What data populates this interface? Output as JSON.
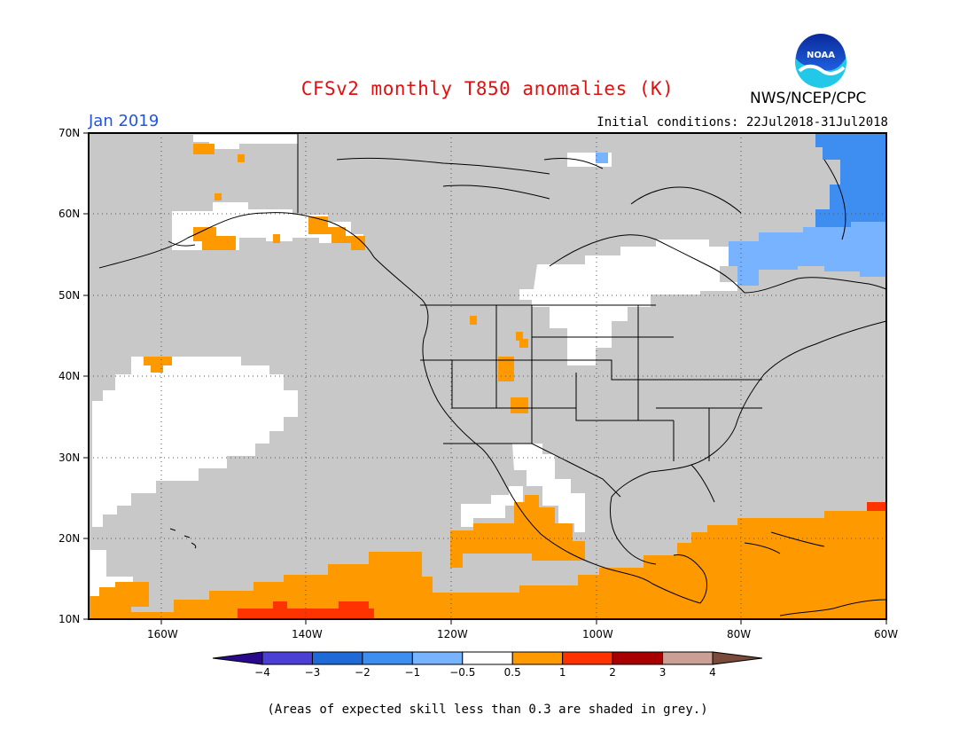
{
  "header": {
    "title": "CFSv2 monthly T850 anomalies (K)",
    "agency": "NWS/NCEP/CPC",
    "month": "Jan 2019",
    "initial_conditions": "Initial conditions: 22Jul2018-31Jul2018",
    "logo_text": "NOAA"
  },
  "map": {
    "projection": "lat-lon",
    "lon_range": [
      -170,
      -60
    ],
    "lat_range": [
      10,
      70
    ],
    "lat_ticks": [
      "10N",
      "20N",
      "30N",
      "40N",
      "50N",
      "60N",
      "70N"
    ],
    "lon_ticks": [
      "160W",
      "140W",
      "120W",
      "100W",
      "80W",
      "60W"
    ],
    "grid": "dotted",
    "background_color": "#c8c8c8",
    "coastline_color": "#000000",
    "regions": [
      {
        "category": "0.5 to 1",
        "color": "#ff9900",
        "area": "tropical Pacific and Caribbean, south of ~25N"
      },
      {
        "category": "1 to 2",
        "color": "#ff3300",
        "area": "near 12N 130-150W; near 23N 60W"
      },
      {
        "category": "-0.5 to 0.5",
        "color": "#ffffff",
        "area": "subtropical NE Pacific; Alaska coast; northern Plains and central Canada"
      },
      {
        "category": "-1 to -0.5",
        "color": "#77b3ff",
        "area": "Labrador Sea / eastern Canada"
      },
      {
        "category": "-2 to -1",
        "color": "#3d8ef0",
        "area": "Baffin Bay / western Greenland"
      }
    ]
  },
  "colorbar": {
    "labels": [
      "−4",
      "−3",
      "−2",
      "−1",
      "−0.5",
      "0.5",
      "1",
      "2",
      "3",
      "4"
    ],
    "colors": [
      "#2a0a8c",
      "#4c3fd6",
      "#1f6ad6",
      "#3d8ef0",
      "#77b3ff",
      "#ffffff",
      "#ff9900",
      "#ff3300",
      "#a80000",
      "#c9a093",
      "#7a4a3a"
    ]
  },
  "footnote": "(Areas of expected skill less than 0.3 are shaded in grey.)"
}
